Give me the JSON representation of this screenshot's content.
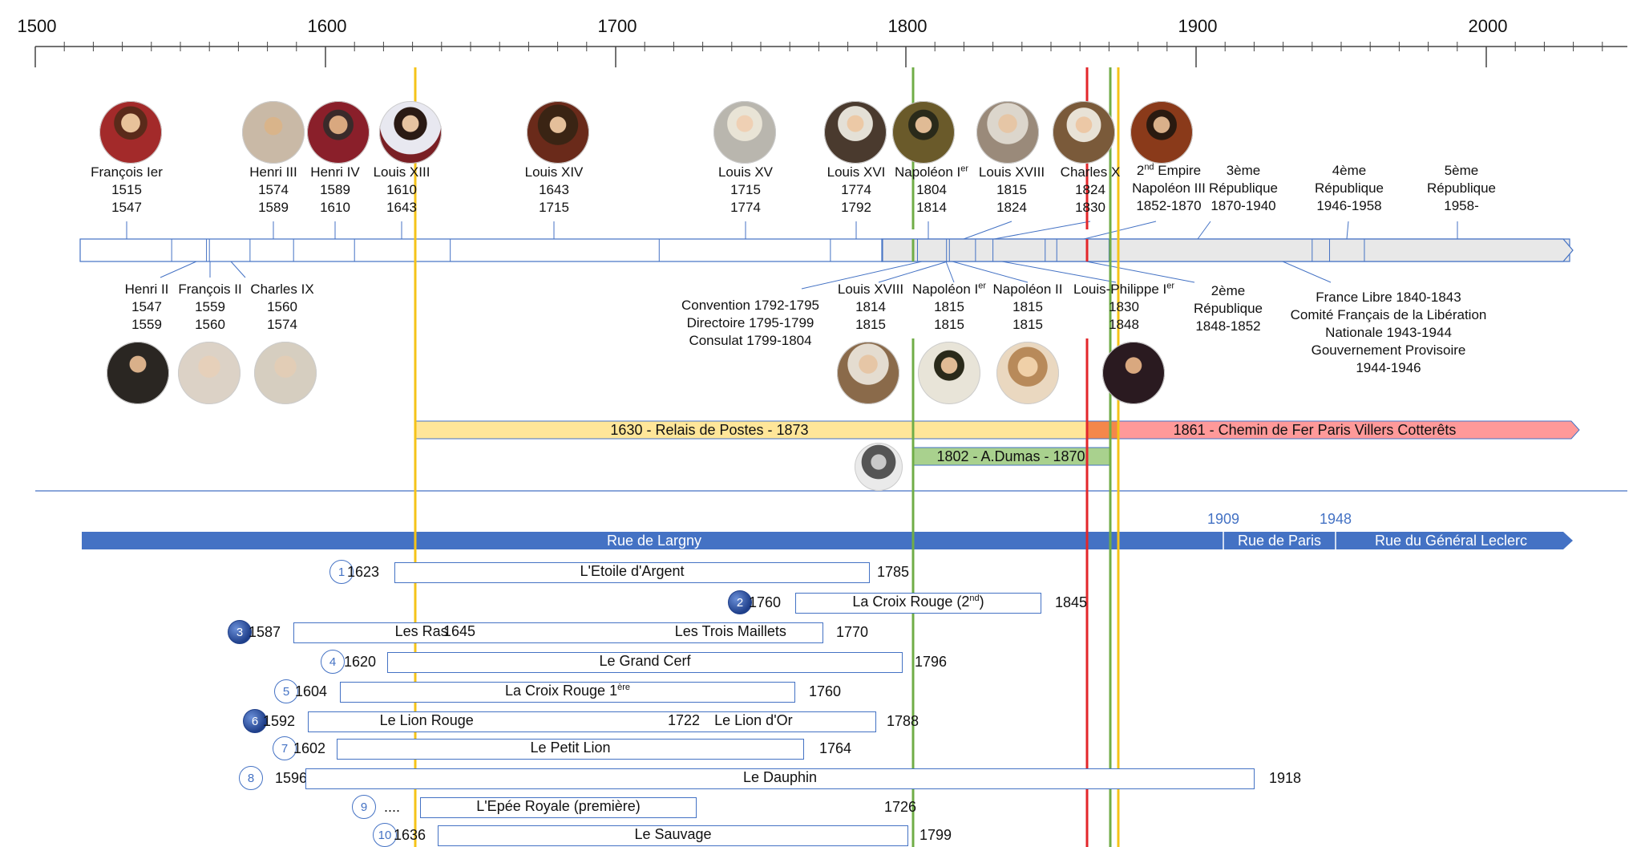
{
  "colors": {
    "accent": "#4472c4",
    "yellow_line": "#f5c318",
    "green_line": "#70ad47",
    "red_line": "#e3262a",
    "relais_bar": "#ffe699",
    "railway_bar": "#ff9999",
    "dumas_bar": "#a9d18e",
    "street_bar": "#4472c4"
  },
  "axis": {
    "ticks": [
      "1500",
      "1600",
      "1700",
      "1800",
      "1900",
      "2000"
    ]
  },
  "rulers_top": [
    {
      "name": "François Ier",
      "start": "1515",
      "end": "1547"
    },
    {
      "name": "Henri III",
      "start": "1574",
      "end": "1589"
    },
    {
      "name": "Henri IV",
      "start": "1589",
      "end": "1610"
    },
    {
      "name": "Louis XIII",
      "start": "1610",
      "end": "1643"
    },
    {
      "name": "Louis XIV",
      "start": "1643",
      "end": "1715"
    },
    {
      "name": "Louis XV",
      "start": "1715",
      "end": "1774"
    },
    {
      "name": "Louis XVI",
      "start": "1774",
      "end": "1792"
    },
    {
      "name": "Napoléon I",
      "sup": "er",
      "start": "1804",
      "end": "1814"
    },
    {
      "name": "Louis XVIII",
      "start": "1815",
      "end": "1824"
    },
    {
      "name": "Charles X",
      "start": "1824",
      "end": "1830"
    }
  ],
  "second_empire": {
    "num": "2",
    "sup": "nd",
    "word": " Empire",
    "line2": "Napoléon III",
    "line3": "1852-1870"
  },
  "republics_top": [
    {
      "line1": "3ème",
      "line2": "République",
      "line3": "1870-1940"
    },
    {
      "line1": "4ème",
      "line2": "République",
      "line3": "1946-1958"
    },
    {
      "line1": "5ème",
      "line2": "République",
      "line3": "1958-"
    }
  ],
  "rulers_bottom": [
    {
      "name": "Henri II",
      "start": "1547",
      "end": "1559"
    },
    {
      "name": "François II",
      "start": "1559",
      "end": "1560"
    },
    {
      "name": "Charles IX",
      "start": "1560",
      "end": "1574"
    },
    {
      "name": "Louis XVIII",
      "start": "1814",
      "end": "1815"
    },
    {
      "name": "Napoléon I",
      "sup": "er",
      "start": "1815",
      "end": "1815"
    },
    {
      "name": "Napoléon II",
      "start": "1815",
      "end": "1815"
    },
    {
      "name": "Louis-Philippe I",
      "sup": "er",
      "start": "1830",
      "end": "1848"
    }
  ],
  "revolution": [
    "Convention 1792-1795",
    "Directoire 1795-1799",
    "Consulat 1799-1804"
  ],
  "second_republic": {
    "line1": "2ème",
    "line2": "République",
    "line3": "1848-1852"
  },
  "wartime": [
    "France Libre 1840-1843",
    "Comité Français de la Libération",
    "Nationale 1943-1944",
    "Gouvernement Provisoire",
    "1944-1946"
  ],
  "bars": {
    "relais": "1630 - Relais de Postes - 1873",
    "railway": "1861 - Chemin de Fer Paris  Villers Cotterêts",
    "dumas": "1802 - A.Dumas - 1870"
  },
  "streets": [
    {
      "name": "Rue de Largny",
      "start_year": ""
    },
    {
      "name": "Rue de Paris",
      "start_year": "1909"
    },
    {
      "name": "Rue du Général Leclerc",
      "start_year": "1948"
    }
  ],
  "inns": [
    {
      "num": "1",
      "filled": false,
      "start": "1623",
      "names": [
        "L'Etoile d'Argent"
      ],
      "mid": "",
      "end": "1785"
    },
    {
      "num": "2",
      "filled": true,
      "start": "1760",
      "names": [
        "La Croix Rouge (2"
      ],
      "sup": "nd",
      "suffix": ")",
      "mid": "",
      "end": "1845"
    },
    {
      "num": "3",
      "filled": true,
      "start": "1587",
      "names": [
        "Les Ras",
        "Les Trois Maillets"
      ],
      "mid": "1645",
      "end": "1770"
    },
    {
      "num": "4",
      "filled": false,
      "start": "1620",
      "names": [
        "Le Grand Cerf"
      ],
      "mid": "",
      "end": "1796"
    },
    {
      "num": "5",
      "filled": false,
      "start": "1604",
      "names": [
        "La Croix Rouge 1"
      ],
      "sup": "ère",
      "mid": "",
      "end": "1760"
    },
    {
      "num": "6",
      "filled": true,
      "start": "1592",
      "names": [
        "Le Lion Rouge",
        "Le Lion d'Or"
      ],
      "mid": "1722",
      "end": "1788"
    },
    {
      "num": "7",
      "filled": false,
      "start": "1602",
      "names": [
        "Le Petit Lion"
      ],
      "mid": "",
      "end": "1764"
    },
    {
      "num": "8",
      "filled": false,
      "start": "1596",
      "names": [
        "Le Dauphin"
      ],
      "mid": "",
      "end": "1918"
    },
    {
      "num": "9",
      "filled": false,
      "start": "....",
      "names": [
        "L'Epée Royale (première)"
      ],
      "mid": "",
      "end": "1726"
    },
    {
      "num": "10",
      "filled": false,
      "start": "1636",
      "names": [
        "Le Sauvage"
      ],
      "mid": "",
      "end": "1799"
    }
  ]
}
